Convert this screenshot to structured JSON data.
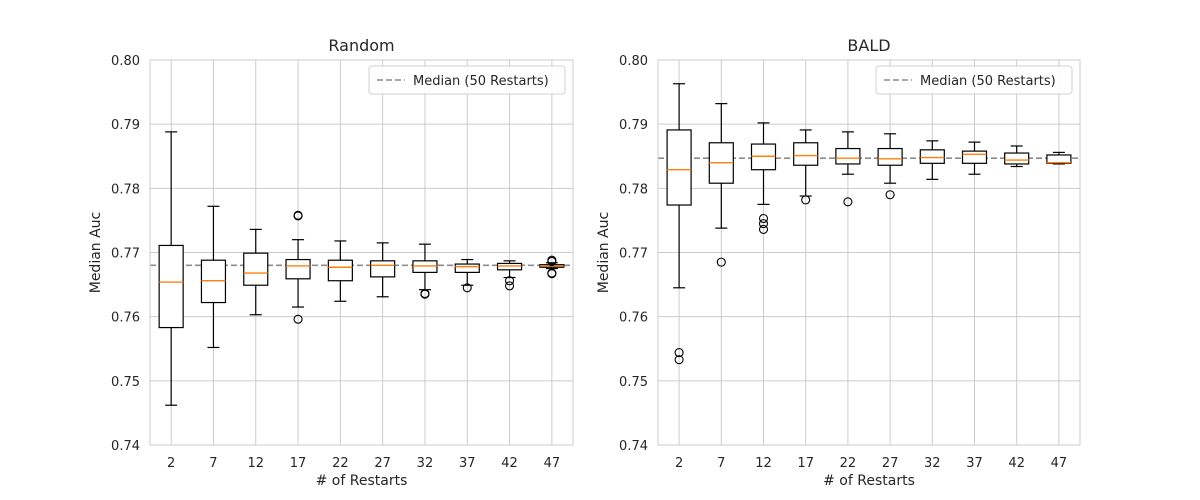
{
  "chart_data": [
    {
      "type": "box",
      "title": "Random",
      "xlabel": "# of Restarts",
      "ylabel": "Median Auc",
      "ylim": [
        0.74,
        0.8
      ],
      "yticks": [
        0.74,
        0.75,
        0.76,
        0.77,
        0.78,
        0.79,
        0.8
      ],
      "ytick_labels": [
        "0.74",
        "0.75",
        "0.76",
        "0.77",
        "0.78",
        "0.79",
        "0.80"
      ],
      "grid": true,
      "legend": {
        "label": "Median (50 Restarts)",
        "placement": "top-right"
      },
      "reference_line": {
        "value": 0.768,
        "style": "dashed"
      },
      "categories": [
        "2",
        "7",
        "12",
        "17",
        "22",
        "27",
        "32",
        "37",
        "42",
        "47"
      ],
      "boxes": [
        {
          "whislo": 0.7462,
          "q1": 0.7583,
          "med": 0.7654,
          "q3": 0.7711,
          "whishi": 0.7888,
          "fliers": []
        },
        {
          "whislo": 0.7552,
          "q1": 0.7622,
          "med": 0.7656,
          "q3": 0.7688,
          "whishi": 0.7772,
          "fliers": []
        },
        {
          "whislo": 0.7603,
          "q1": 0.7649,
          "med": 0.7668,
          "q3": 0.7699,
          "whishi": 0.7736,
          "fliers": []
        },
        {
          "whislo": 0.7615,
          "q1": 0.7659,
          "med": 0.7679,
          "q3": 0.7689,
          "whishi": 0.772,
          "fliers": [
            0.7757,
            0.7758,
            0.7596
          ]
        },
        {
          "whislo": 0.7624,
          "q1": 0.7656,
          "med": 0.7677,
          "q3": 0.7688,
          "whishi": 0.7718,
          "fliers": []
        },
        {
          "whislo": 0.7631,
          "q1": 0.7662,
          "med": 0.768,
          "q3": 0.7687,
          "whishi": 0.7715,
          "fliers": []
        },
        {
          "whislo": 0.7642,
          "q1": 0.7669,
          "med": 0.7679,
          "q3": 0.7687,
          "whishi": 0.7713,
          "fliers": [
            0.7636,
            0.7635
          ]
        },
        {
          "whislo": 0.7649,
          "q1": 0.7669,
          "med": 0.7678,
          "q3": 0.7682,
          "whishi": 0.7689,
          "fliers": [
            0.7645
          ]
        },
        {
          "whislo": 0.7661,
          "q1": 0.7673,
          "med": 0.7679,
          "q3": 0.7683,
          "whishi": 0.7687,
          "fliers": [
            0.7656,
            0.7648
          ]
        },
        {
          "whislo": 0.7675,
          "q1": 0.7677,
          "med": 0.7679,
          "q3": 0.7681,
          "whishi": 0.7684,
          "fliers": [
            0.7688,
            0.7686,
            0.7668,
            0.7667
          ]
        }
      ]
    },
    {
      "type": "box",
      "title": "BALD",
      "xlabel": "# of Restarts",
      "ylabel": "Median Auc",
      "ylim": [
        0.74,
        0.8
      ],
      "yticks": [
        0.74,
        0.75,
        0.76,
        0.77,
        0.78,
        0.79,
        0.8
      ],
      "ytick_labels": [
        "0.74",
        "0.75",
        "0.76",
        "0.77",
        "0.78",
        "0.79",
        "0.80"
      ],
      "grid": true,
      "legend": {
        "label": "Median (50 Restarts)",
        "placement": "top-right"
      },
      "reference_line": {
        "value": 0.7847,
        "style": "dashed"
      },
      "categories": [
        "2",
        "7",
        "12",
        "17",
        "22",
        "27",
        "32",
        "37",
        "42",
        "47"
      ],
      "boxes": [
        {
          "whislo": 0.7645,
          "q1": 0.7774,
          "med": 0.7829,
          "q3": 0.7891,
          "whishi": 0.7963,
          "fliers": [
            0.7544,
            0.7533
          ]
        },
        {
          "whislo": 0.7738,
          "q1": 0.7808,
          "med": 0.784,
          "q3": 0.7871,
          "whishi": 0.7932,
          "fliers": [
            0.7685
          ]
        },
        {
          "whislo": 0.7775,
          "q1": 0.7829,
          "med": 0.785,
          "q3": 0.7869,
          "whishi": 0.7902,
          "fliers": [
            0.7753,
            0.7745,
            0.7736
          ]
        },
        {
          "whislo": 0.7788,
          "q1": 0.7836,
          "med": 0.7851,
          "q3": 0.7871,
          "whishi": 0.7891,
          "fliers": [
            0.7782
          ]
        },
        {
          "whislo": 0.7822,
          "q1": 0.7838,
          "med": 0.7847,
          "q3": 0.7862,
          "whishi": 0.7888,
          "fliers": [
            0.7779
          ]
        },
        {
          "whislo": 0.7808,
          "q1": 0.7836,
          "med": 0.7846,
          "q3": 0.7862,
          "whishi": 0.7885,
          "fliers": [
            0.779
          ]
        },
        {
          "whislo": 0.7814,
          "q1": 0.7839,
          "med": 0.7848,
          "q3": 0.786,
          "whishi": 0.7874,
          "fliers": []
        },
        {
          "whislo": 0.7822,
          "q1": 0.7839,
          "med": 0.7853,
          "q3": 0.7858,
          "whishi": 0.7872,
          "fliers": []
        },
        {
          "whislo": 0.7834,
          "q1": 0.7838,
          "med": 0.7844,
          "q3": 0.7855,
          "whishi": 0.7866,
          "fliers": []
        },
        {
          "whislo": 0.7838,
          "q1": 0.7839,
          "med": 0.784,
          "q3": 0.7852,
          "whishi": 0.7856,
          "fliers": []
        }
      ]
    }
  ]
}
